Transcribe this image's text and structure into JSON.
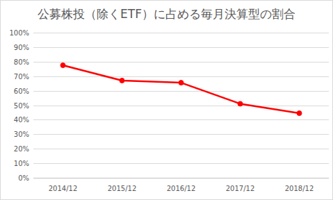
{
  "chart_data": {
    "type": "line",
    "title": "公募株投（除くETF）に占める毎月決算型の割合",
    "categories": [
      "2014/12",
      "2015/12",
      "2016/12",
      "2017/12",
      "2018/12"
    ],
    "values": [
      77.5,
      67,
      65.5,
      51,
      44.5
    ],
    "color": "#ff0000",
    "marker": "circle",
    "ylim": [
      0,
      100
    ],
    "yticks": [
      {
        "value": 0,
        "label": "0%"
      },
      {
        "value": 10,
        "label": "10%"
      },
      {
        "value": 20,
        "label": "20%"
      },
      {
        "value": 30,
        "label": "30%"
      },
      {
        "value": 40,
        "label": "40%"
      },
      {
        "value": 50,
        "label": "50%"
      },
      {
        "value": 60,
        "label": "60%"
      },
      {
        "value": 70,
        "label": "70%"
      },
      {
        "value": 80,
        "label": "80%"
      },
      {
        "value": 90,
        "label": "90%"
      },
      {
        "value": 100,
        "label": "100%"
      }
    ],
    "grid": true
  }
}
